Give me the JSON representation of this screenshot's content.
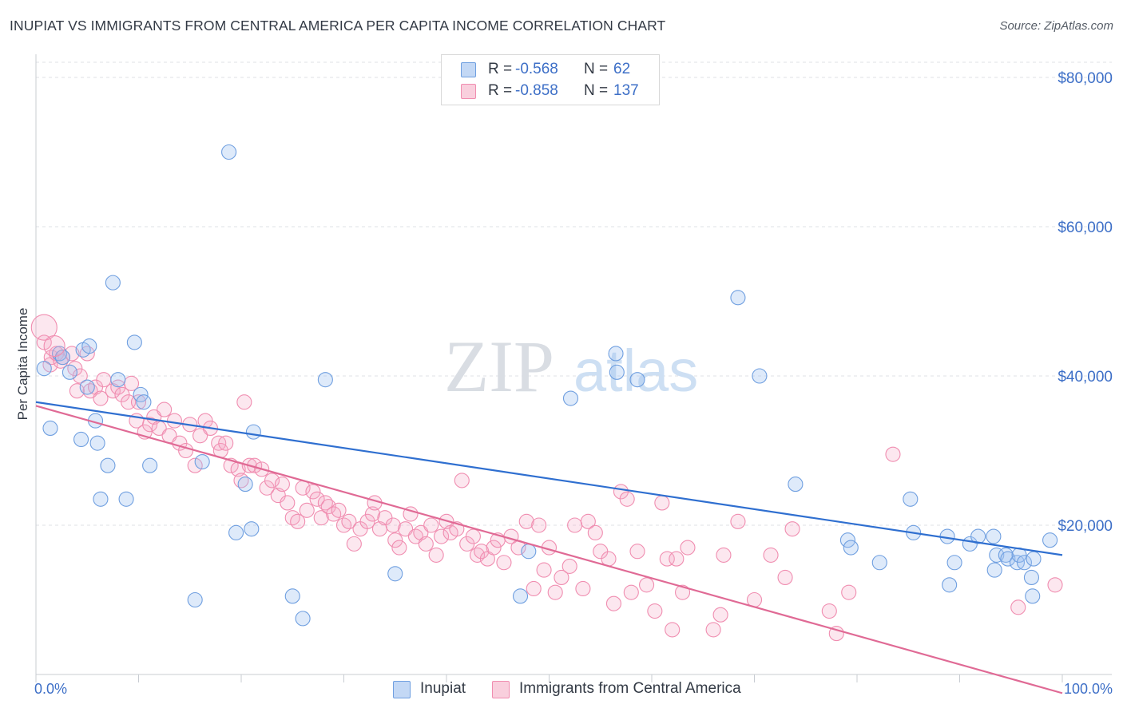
{
  "header": {
    "title": "INUPIAT VS IMMIGRANTS FROM CENTRAL AMERICA PER CAPITA INCOME CORRELATION CHART",
    "source": "Source: ZipAtlas.com"
  },
  "watermark": {
    "zip": "ZIP",
    "atlas": "atlas"
  },
  "legend": {
    "rows": [
      {
        "r_label": "R =",
        "r_value": "-0.568",
        "n_label": "N =",
        "n_value": "62",
        "color": "#6f9fe0"
      },
      {
        "r_label": "R =",
        "r_value": "-0.858",
        "n_label": "N =",
        "n_value": "137",
        "color": "#f08db0"
      }
    ]
  },
  "bottom_legend": {
    "items": [
      {
        "label": "Inupiat",
        "color": "#6f9fe0"
      },
      {
        "label": "Immigrants from Central America",
        "color": "#f08db0"
      }
    ]
  },
  "chart_data": {
    "type": "scatter",
    "ylabel": "Per Capita Income",
    "xlim": [
      0,
      100
    ],
    "ylim": [
      0,
      80000
    ],
    "x_tick_labels": [
      "0.0%",
      "100.0%"
    ],
    "y_ticks": [
      20000,
      40000,
      60000,
      80000
    ],
    "y_tick_labels": [
      "$20,000",
      "$40,000",
      "$60,000",
      "$80,000"
    ],
    "grid": true,
    "series": [
      {
        "name": "Inupiat",
        "color": "#6f9fe0",
        "line_color": "#2f6fd0",
        "trend": {
          "x": [
            0,
            100
          ],
          "y": [
            36500,
            16000
          ]
        },
        "points": [
          [
            0.8,
            41000
          ],
          [
            1.4,
            33000
          ],
          [
            2.3,
            43000
          ],
          [
            2.6,
            42500
          ],
          [
            3.3,
            40500
          ],
          [
            4.4,
            31500
          ],
          [
            4.6,
            43500
          ],
          [
            5.0,
            38500
          ],
          [
            5.2,
            44000
          ],
          [
            5.8,
            34000
          ],
          [
            6.0,
            31000
          ],
          [
            6.3,
            23500
          ],
          [
            7.0,
            28000
          ],
          [
            7.5,
            52500
          ],
          [
            8.0,
            39500
          ],
          [
            8.8,
            23500
          ],
          [
            9.6,
            44500
          ],
          [
            10.2,
            37500
          ],
          [
            10.5,
            36500
          ],
          [
            11.1,
            28000
          ],
          [
            15.5,
            10000
          ],
          [
            16.2,
            28500
          ],
          [
            18.8,
            70000
          ],
          [
            19.5,
            19000
          ],
          [
            20.4,
            25500
          ],
          [
            21.0,
            19500
          ],
          [
            21.2,
            32500
          ],
          [
            25.0,
            10500
          ],
          [
            26.0,
            7500
          ],
          [
            28.2,
            39500
          ],
          [
            35.0,
            13500
          ],
          [
            47.2,
            10500
          ],
          [
            48.0,
            16500
          ],
          [
            52.1,
            37000
          ],
          [
            56.5,
            43000
          ],
          [
            56.6,
            40500
          ],
          [
            58.6,
            39500
          ],
          [
            68.4,
            50500
          ],
          [
            70.5,
            40000
          ],
          [
            74.0,
            25500
          ],
          [
            79.1,
            18000
          ],
          [
            79.4,
            17000
          ],
          [
            82.2,
            15000
          ],
          [
            85.2,
            23500
          ],
          [
            85.5,
            19000
          ],
          [
            89.0,
            12000
          ],
          [
            89.5,
            15000
          ],
          [
            91.0,
            17500
          ],
          [
            91.8,
            18500
          ],
          [
            93.3,
            18500
          ],
          [
            93.4,
            14000
          ],
          [
            93.6,
            16000
          ],
          [
            94.5,
            16000
          ],
          [
            94.7,
            15500
          ],
          [
            95.6,
            15000
          ],
          [
            95.8,
            16000
          ],
          [
            96.3,
            15000
          ],
          [
            97.1,
            10500
          ],
          [
            97.0,
            13000
          ],
          [
            98.8,
            18000
          ],
          [
            97.2,
            15500
          ],
          [
            88.8,
            18500
          ]
        ]
      },
      {
        "name": "Immigrants from Central America",
        "color": "#f08db0",
        "line_color": "#e06a95",
        "trend": {
          "x": [
            0,
            100
          ],
          "y": [
            36000,
            -2500
          ]
        },
        "points": [
          [
            0.8,
            44500
          ],
          [
            1.4,
            41500
          ],
          [
            1.5,
            42500
          ],
          [
            2.0,
            43000
          ],
          [
            2.4,
            42000
          ],
          [
            2.6,
            42500
          ],
          [
            3.5,
            43000
          ],
          [
            3.8,
            41000
          ],
          [
            4.0,
            38000
          ],
          [
            4.3,
            40000
          ],
          [
            5.0,
            43000
          ],
          [
            5.3,
            38000
          ],
          [
            5.8,
            38500
          ],
          [
            6.3,
            37000
          ],
          [
            6.6,
            39500
          ],
          [
            7.5,
            38000
          ],
          [
            8.0,
            38500
          ],
          [
            8.4,
            37500
          ],
          [
            9.0,
            36500
          ],
          [
            9.3,
            39000
          ],
          [
            9.8,
            34000
          ],
          [
            10.0,
            36500
          ],
          [
            10.6,
            32500
          ],
          [
            11.1,
            33500
          ],
          [
            11.5,
            34500
          ],
          [
            12.0,
            33000
          ],
          [
            12.5,
            35500
          ],
          [
            13.0,
            32000
          ],
          [
            13.5,
            34000
          ],
          [
            14.0,
            31000
          ],
          [
            14.6,
            30000
          ],
          [
            15.0,
            33500
          ],
          [
            15.5,
            28000
          ],
          [
            16.0,
            32000
          ],
          [
            16.5,
            34000
          ],
          [
            17.0,
            33000
          ],
          [
            17.8,
            31000
          ],
          [
            18.0,
            30000
          ],
          [
            18.5,
            31000
          ],
          [
            19.0,
            28000
          ],
          [
            19.7,
            27500
          ],
          [
            20.0,
            26000
          ],
          [
            20.3,
            36500
          ],
          [
            20.8,
            28000
          ],
          [
            21.3,
            28000
          ],
          [
            22.0,
            27500
          ],
          [
            22.5,
            25000
          ],
          [
            23.0,
            26000
          ],
          [
            23.6,
            24000
          ],
          [
            24.0,
            25500
          ],
          [
            24.5,
            23000
          ],
          [
            25.0,
            21000
          ],
          [
            25.5,
            20500
          ],
          [
            26.0,
            25000
          ],
          [
            26.4,
            22000
          ],
          [
            27.0,
            24500
          ],
          [
            27.4,
            23500
          ],
          [
            27.8,
            21000
          ],
          [
            28.2,
            23000
          ],
          [
            28.5,
            22500
          ],
          [
            29.0,
            21500
          ],
          [
            29.5,
            22000
          ],
          [
            30.0,
            20000
          ],
          [
            30.5,
            20500
          ],
          [
            31.0,
            17500
          ],
          [
            31.6,
            19500
          ],
          [
            32.3,
            20500
          ],
          [
            32.8,
            21500
          ],
          [
            33.0,
            23000
          ],
          [
            33.5,
            19500
          ],
          [
            34.0,
            21000
          ],
          [
            34.8,
            20000
          ],
          [
            35.0,
            18000
          ],
          [
            35.4,
            17000
          ],
          [
            36.0,
            19500
          ],
          [
            36.5,
            21500
          ],
          [
            37.0,
            18500
          ],
          [
            37.5,
            19000
          ],
          [
            38.0,
            17500
          ],
          [
            38.5,
            20000
          ],
          [
            39.0,
            16000
          ],
          [
            39.5,
            18500
          ],
          [
            40.0,
            20500
          ],
          [
            40.4,
            19000
          ],
          [
            41.0,
            19500
          ],
          [
            41.5,
            26000
          ],
          [
            42.0,
            17500
          ],
          [
            42.6,
            18500
          ],
          [
            43.0,
            16000
          ],
          [
            43.4,
            16500
          ],
          [
            44.0,
            15500
          ],
          [
            44.6,
            17000
          ],
          [
            45.0,
            18000
          ],
          [
            45.6,
            15000
          ],
          [
            46.3,
            18500
          ],
          [
            47.0,
            17000
          ],
          [
            47.8,
            20500
          ],
          [
            48.5,
            11500
          ],
          [
            49.0,
            20000
          ],
          [
            49.5,
            14000
          ],
          [
            50.0,
            17000
          ],
          [
            50.6,
            11000
          ],
          [
            51.2,
            13000
          ],
          [
            52.0,
            14500
          ],
          [
            52.5,
            20000
          ],
          [
            53.3,
            11500
          ],
          [
            53.8,
            20500
          ],
          [
            54.5,
            19000
          ],
          [
            55.0,
            16500
          ],
          [
            55.8,
            15500
          ],
          [
            56.3,
            9500
          ],
          [
            57.0,
            24500
          ],
          [
            57.6,
            23500
          ],
          [
            58.0,
            11000
          ],
          [
            58.6,
            16500
          ],
          [
            59.5,
            12000
          ],
          [
            60.3,
            8500
          ],
          [
            61.0,
            23000
          ],
          [
            61.5,
            15500
          ],
          [
            62.0,
            6000
          ],
          [
            62.4,
            15500
          ],
          [
            63.0,
            11000
          ],
          [
            63.5,
            17000
          ],
          [
            66.0,
            6000
          ],
          [
            66.7,
            8000
          ],
          [
            67.0,
            16000
          ],
          [
            68.4,
            20500
          ],
          [
            70.0,
            10000
          ],
          [
            71.6,
            16000
          ],
          [
            73.0,
            13000
          ],
          [
            73.7,
            19500
          ],
          [
            77.3,
            8500
          ],
          [
            78.0,
            5500
          ],
          [
            79.2,
            11000
          ],
          [
            83.5,
            29500
          ],
          [
            95.7,
            9000
          ],
          [
            99.3,
            12000
          ]
        ]
      }
    ]
  }
}
